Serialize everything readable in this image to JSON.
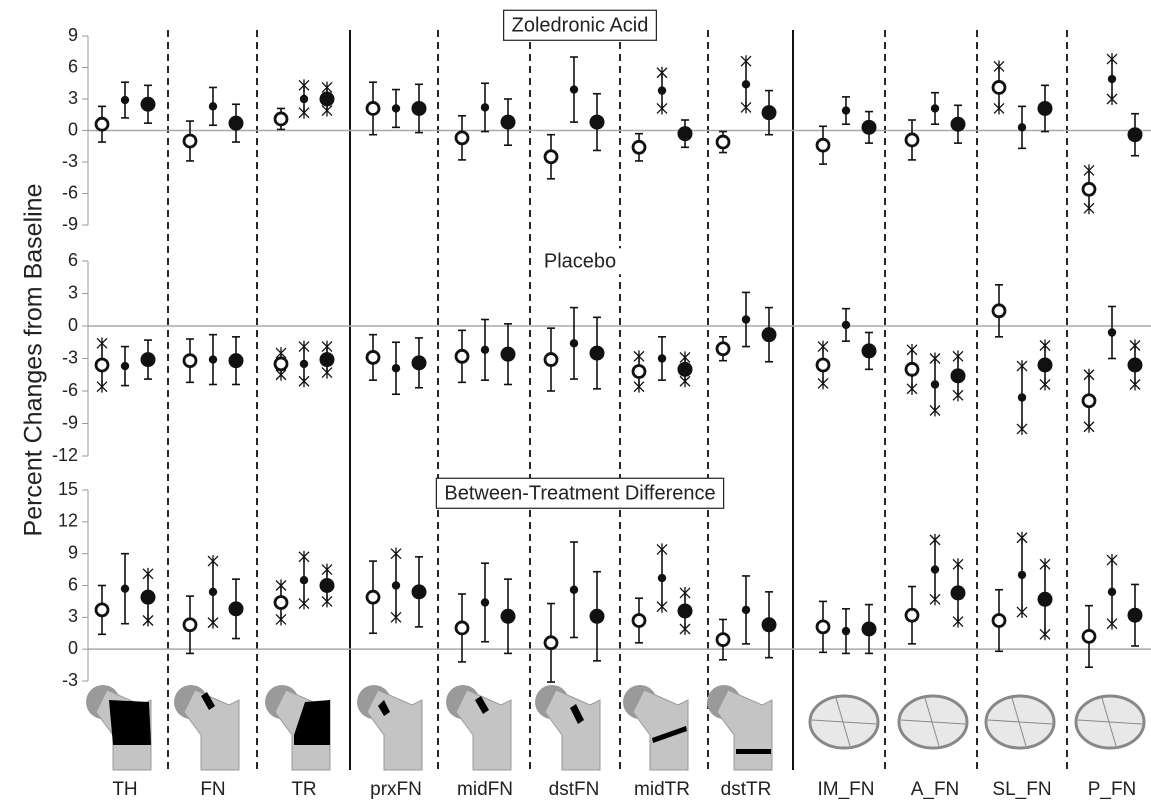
{
  "chart_data": [
    {
      "type": "errorbar",
      "title": "Zoledronic Acid",
      "ylim": [
        -9,
        9
      ],
      "yticks": [
        -9,
        -6,
        -3,
        0,
        3,
        6,
        9
      ],
      "zero_line": true,
      "series": [
        {
          "marker": "open-circle",
          "values": [
            0.6,
            -1.0,
            1.1,
            2.1,
            -0.7,
            -2.5,
            -1.6,
            -1.1,
            -1.4,
            -0.9,
            4.1,
            -5.6
          ],
          "errors": [
            1.7,
            1.9,
            1.0,
            2.5,
            2.1,
            2.1,
            1.3,
            1.0,
            1.8,
            1.9,
            2.0,
            1.8
          ],
          "stars": [
            false,
            false,
            false,
            false,
            false,
            false,
            false,
            false,
            false,
            false,
            true,
            true
          ]
        },
        {
          "marker": "small-dot",
          "values": [
            2.9,
            2.3,
            3.0,
            2.1,
            2.2,
            3.9,
            3.8,
            4.4,
            1.9,
            2.1,
            0.3,
            4.9
          ],
          "errors": [
            1.7,
            1.8,
            1.3,
            1.8,
            2.3,
            3.1,
            1.7,
            2.2,
            1.3,
            1.5,
            2.0,
            1.9
          ],
          "stars": [
            false,
            false,
            true,
            false,
            false,
            false,
            true,
            true,
            false,
            false,
            false,
            true
          ]
        },
        {
          "marker": "large-dot",
          "values": [
            2.5,
            0.7,
            3.0,
            2.1,
            0.8,
            0.8,
            -0.3,
            1.7,
            0.3,
            0.6,
            2.1,
            -0.4
          ],
          "errors": [
            1.8,
            1.8,
            1.1,
            2.3,
            2.2,
            2.7,
            1.3,
            2.1,
            1.5,
            1.8,
            2.2,
            2.0
          ],
          "stars": [
            false,
            false,
            true,
            false,
            false,
            false,
            false,
            false,
            false,
            false,
            false,
            false
          ]
        }
      ]
    },
    {
      "type": "errorbar",
      "title": "Placebo",
      "ylabel": "Percent Changes from Baseline",
      "ylim": [
        -12,
        6
      ],
      "yticks": [
        -12,
        -9,
        -6,
        -3,
        0,
        3,
        6
      ],
      "zero_line": true,
      "series": [
        {
          "marker": "open-circle",
          "values": [
            -3.6,
            -3.2,
            -3.5,
            -2.9,
            -2.8,
            -3.1,
            -4.2,
            -2.1,
            -3.6,
            -4.0,
            1.4,
            -6.9
          ],
          "errors": [
            2.0,
            2.0,
            1.0,
            2.1,
            2.4,
            2.9,
            1.4,
            1.1,
            1.7,
            1.8,
            2.4,
            2.4
          ],
          "stars": [
            true,
            false,
            true,
            false,
            false,
            false,
            true,
            false,
            true,
            true,
            false,
            true
          ]
        },
        {
          "marker": "small-dot",
          "values": [
            -3.7,
            -3.1,
            -3.5,
            -3.9,
            -2.2,
            -1.6,
            -3.0,
            0.6,
            0.1,
            -5.4,
            -6.6,
            -0.6
          ],
          "errors": [
            1.8,
            2.3,
            1.6,
            2.4,
            2.8,
            3.3,
            2.0,
            2.5,
            1.5,
            2.4,
            2.9,
            2.4
          ],
          "stars": [
            false,
            false,
            true,
            false,
            false,
            false,
            false,
            false,
            false,
            true,
            true,
            false
          ]
        },
        {
          "marker": "large-dot",
          "values": [
            -3.1,
            -3.2,
            -3.1,
            -3.4,
            -2.6,
            -2.5,
            -4.0,
            -0.8,
            -2.3,
            -4.6,
            -3.6,
            -3.6
          ],
          "errors": [
            1.8,
            2.2,
            1.2,
            2.3,
            2.8,
            3.3,
            1.1,
            2.5,
            1.7,
            1.8,
            1.8,
            1.8
          ],
          "stars": [
            false,
            false,
            true,
            false,
            false,
            false,
            true,
            false,
            false,
            true,
            true,
            true
          ]
        }
      ]
    },
    {
      "type": "errorbar",
      "title": "Between-Treatment Difference",
      "ylim": [
        -3,
        15
      ],
      "yticks": [
        -3,
        0,
        3,
        6,
        9,
        12,
        15
      ],
      "zero_line": true,
      "categories": [
        "TH",
        "FN",
        "TR",
        "prxFN",
        "midFN",
        "dstFN",
        "midTR",
        "dstTR",
        "IM_FN",
        "A_FN",
        "SL_FN",
        "P_FN"
      ],
      "series": [
        {
          "marker": "open-circle",
          "values": [
            3.7,
            2.3,
            4.4,
            4.9,
            2.0,
            0.6,
            2.7,
            0.9,
            2.1,
            3.2,
            2.7,
            1.2
          ],
          "errors": [
            2.3,
            2.7,
            1.6,
            3.4,
            3.2,
            3.7,
            2.1,
            1.9,
            2.4,
            2.7,
            2.9,
            2.9
          ],
          "stars": [
            false,
            false,
            true,
            false,
            false,
            false,
            false,
            false,
            false,
            false,
            false,
            false
          ]
        },
        {
          "marker": "small-dot",
          "values": [
            5.7,
            5.4,
            6.5,
            6.0,
            4.4,
            5.6,
            6.7,
            3.7,
            1.7,
            7.5,
            7.0,
            5.4
          ],
          "errors": [
            3.3,
            2.9,
            2.2,
            3.0,
            3.7,
            4.5,
            2.7,
            3.2,
            2.1,
            2.8,
            3.5,
            3.0
          ],
          "stars": [
            false,
            true,
            true,
            true,
            false,
            false,
            true,
            false,
            false,
            true,
            true,
            true
          ]
        },
        {
          "marker": "large-dot",
          "values": [
            4.9,
            3.8,
            6.0,
            5.4,
            3.1,
            3.1,
            3.6,
            2.3,
            1.9,
            5.3,
            4.7,
            3.2
          ],
          "errors": [
            2.2,
            2.8,
            1.5,
            3.3,
            3.5,
            4.2,
            1.7,
            3.1,
            2.3,
            2.7,
            3.3,
            2.9
          ],
          "stars": [
            true,
            false,
            true,
            false,
            false,
            false,
            true,
            false,
            false,
            true,
            true,
            false
          ]
        }
      ]
    }
  ]
}
